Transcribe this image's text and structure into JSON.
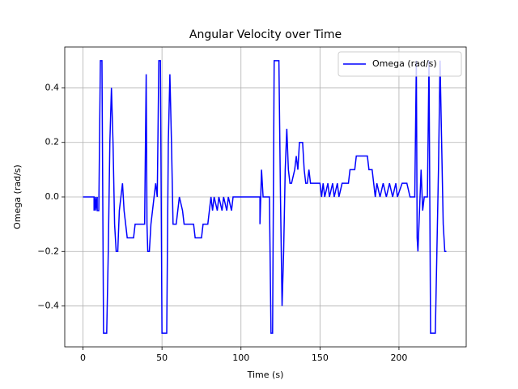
{
  "chart_data": {
    "type": "line",
    "title": "Angular Velocity over Time",
    "x_label": "Time (s)",
    "y_label": "Omega (rad/s)",
    "x": [
      0,
      7,
      7,
      8,
      8,
      9,
      9,
      10,
      11,
      12,
      12.5,
      13,
      15,
      16,
      17,
      18,
      19,
      20,
      21,
      22,
      23,
      24,
      25,
      26,
      27,
      28,
      32,
      33,
      39,
      40,
      40.5,
      41,
      42,
      43,
      45,
      46,
      47,
      48,
      49,
      50,
      53,
      54,
      55,
      56,
      57,
      59,
      60,
      61,
      63,
      64,
      70,
      71,
      75,
      76,
      79,
      80,
      81,
      82,
      83,
      85,
      86,
      88,
      89,
      91,
      92,
      94,
      95,
      112,
      112,
      113,
      114,
      115,
      118,
      119,
      120,
      121,
      124,
      125,
      126,
      127,
      128,
      129,
      130,
      131,
      132,
      134,
      135,
      136,
      137,
      139,
      140,
      141,
      142,
      143,
      144,
      150,
      151,
      152,
      153,
      155,
      156,
      158,
      159,
      161,
      162,
      164,
      165,
      168,
      169,
      172,
      173,
      180,
      181,
      183,
      184,
      185,
      186,
      188,
      190,
      192,
      194,
      196,
      198,
      199,
      202,
      205,
      207,
      210,
      211,
      211.5,
      212,
      213,
      214,
      215,
      216,
      218,
      219,
      220,
      223,
      224,
      225,
      226,
      227,
      228,
      229,
      230
    ],
    "series": [
      {
        "name": "Omega (rad/s)",
        "color": "#0000ff",
        "values": [
          0,
          0,
          -0.05,
          0,
          -0.05,
          0,
          -0.05,
          -0.05,
          0.5,
          0.5,
          0,
          -0.5,
          -0.5,
          -0.2,
          0.2,
          0.4,
          0.2,
          -0.1,
          -0.2,
          -0.2,
          -0.05,
          0,
          0.05,
          -0.05,
          -0.1,
          -0.15,
          -0.15,
          -0.1,
          -0.1,
          0.45,
          -0.1,
          -0.2,
          -0.2,
          -0.1,
          0,
          0.05,
          0,
          0.5,
          0.5,
          -0.5,
          -0.5,
          0.2,
          0.45,
          0.2,
          -0.1,
          -0.1,
          -0.05,
          0,
          -0.05,
          -0.1,
          -0.1,
          -0.15,
          -0.15,
          -0.1,
          -0.1,
          -0.05,
          0,
          -0.05,
          0,
          -0.05,
          0,
          -0.05,
          0,
          -0.05,
          0,
          -0.05,
          0,
          0,
          -0.1,
          0.1,
          0,
          0,
          0,
          -0.5,
          -0.5,
          0.5,
          0.5,
          0,
          -0.4,
          -0.2,
          0.1,
          0.25,
          0.1,
          0.05,
          0.05,
          0.1,
          0.15,
          0.1,
          0.2,
          0.2,
          0.1,
          0.05,
          0.05,
          0.1,
          0.05,
          0.05,
          0,
          0.05,
          0,
          0.05,
          0,
          0.05,
          0,
          0.05,
          0,
          0.05,
          0.05,
          0.05,
          0.1,
          0.1,
          0.15,
          0.15,
          0.1,
          0.1,
          0.05,
          0,
          0.05,
          0,
          0.05,
          0,
          0.05,
          0,
          0.05,
          0,
          0.05,
          0.05,
          0,
          0,
          0.5,
          -0.15,
          -0.2,
          -0.05,
          0.1,
          -0.05,
          0,
          0,
          0.5,
          -0.5,
          -0.5,
          -0.2,
          0.1,
          0.5,
          0.2,
          -0.1,
          -0.2,
          -0.2
        ]
      }
    ],
    "xlim": [
      -11.55,
      242.55
    ],
    "xticks": [
      0,
      50,
      100,
      150,
      200
    ],
    "ylim": [
      -0.55,
      0.55
    ],
    "yticks": [
      {
        "value": -0.4,
        "label": "−0.4"
      },
      {
        "value": -0.2,
        "label": "−0.2"
      },
      {
        "value": 0,
        "label": "0.0"
      },
      0.2,
      0.4
    ],
    "grid": true,
    "legend": "upper right"
  }
}
